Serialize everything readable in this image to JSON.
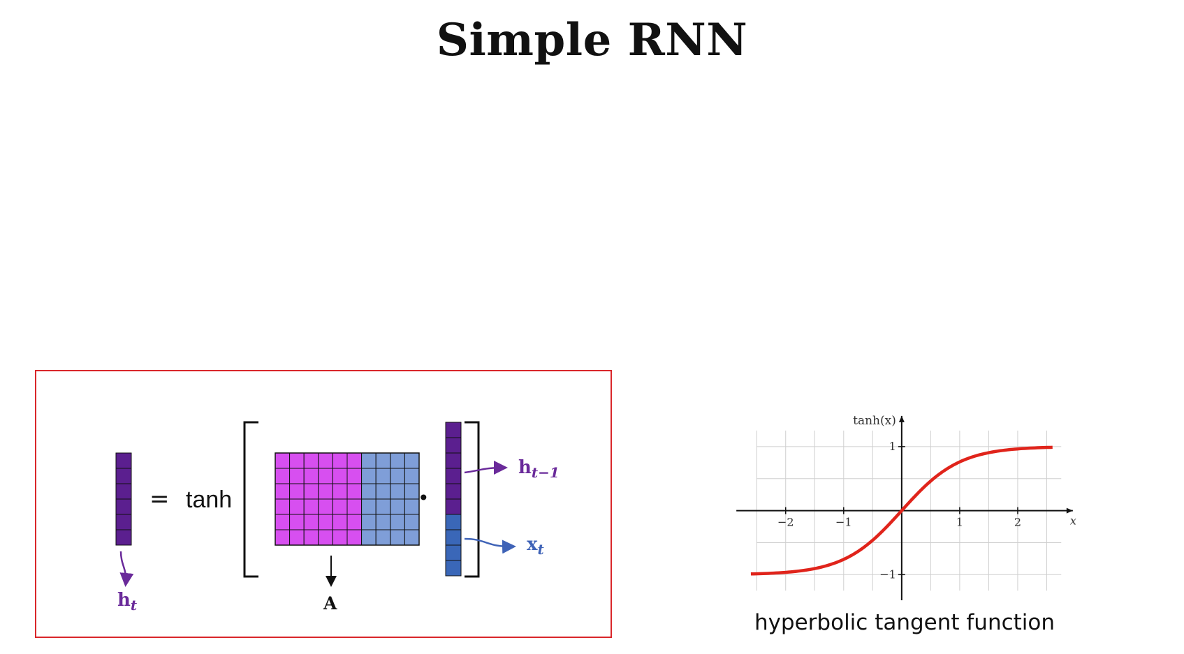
{
  "title": "Simple RNN",
  "equation": {
    "equals": "=",
    "function_name": "tanh",
    "dot": "•",
    "h_t_base": "h",
    "h_t_sub": "t",
    "matrix_label": "A",
    "h_prev_base": "h",
    "h_prev_sub": "t−1",
    "x_t_base": "x",
    "x_t_sub": "t"
  },
  "plot": {
    "y_axis_label": "tanh(x)",
    "x_axis_label": "x",
    "x_ticks": [
      "−2",
      "−1",
      "1",
      "2"
    ],
    "y_ticks": [
      "1",
      "−1"
    ],
    "caption": "hyperbolic tangent function"
  },
  "chart_data": {
    "type": "line",
    "x": [
      -2.6,
      -2.0,
      -1.5,
      -1.0,
      -0.5,
      0.0,
      0.5,
      1.0,
      1.5,
      2.0,
      2.6
    ],
    "y": [
      -0.989,
      -0.964,
      -0.905,
      -0.762,
      -0.462,
      0.0,
      0.462,
      0.762,
      0.905,
      0.964,
      0.989
    ],
    "xlabel": "x",
    "ylabel": "tanh(x)",
    "xlim": [
      -2.9,
      3.0
    ],
    "ylim": [
      -1.4,
      1.5
    ],
    "x_ticks": [
      -2,
      -1,
      1,
      2
    ],
    "y_ticks": [
      1,
      -1
    ],
    "grid": true
  },
  "colors": {
    "hidden_dark": "#5b1f8f",
    "input_blue": "#3a67b8",
    "matrix_magenta": "#d74ff0",
    "matrix_blue": "#7f9ed8",
    "curve_red": "#e0241b",
    "box_red": "#d9262a",
    "label_purple": "#6a2a9a",
    "label_blue": "#3f63b7"
  }
}
